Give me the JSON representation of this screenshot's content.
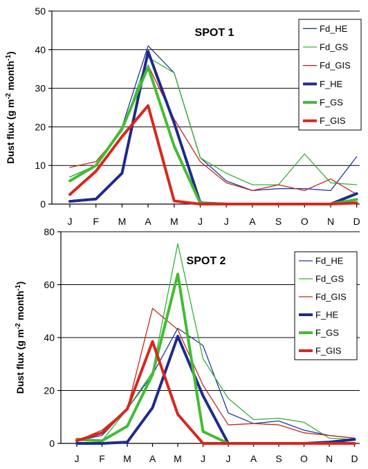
{
  "months": [
    "J",
    "F",
    "M",
    "A",
    "M",
    "J",
    "J",
    "A",
    "S",
    "O",
    "N",
    "D"
  ],
  "ylabel_parts": [
    "Dust flux (g m",
    "-2",
    " month",
    "-1",
    ")"
  ],
  "series_styles": {
    "Fd_HE": {
      "color": "#1f3a9e",
      "thick": false
    },
    "Fd_GS": {
      "color": "#33b233",
      "thick": false
    },
    "Fd_GIS": {
      "color": "#c0261e",
      "thick": false
    },
    "F_HE": {
      "color": "#1f2a8c",
      "thick": true
    },
    "F_GS": {
      "color": "#44bb33",
      "thick": true
    },
    "F_GIS": {
      "color": "#d8261e",
      "thick": true
    }
  },
  "chart_data": [
    {
      "type": "line",
      "title": "SPOT 1",
      "ylabel": "Dust flux (g m-2 month-1)",
      "ylim": [
        0,
        50
      ],
      "yticks": [
        0,
        10,
        20,
        30,
        40,
        50
      ],
      "grid": true,
      "legend": "top-right",
      "categories": [
        "J",
        "F",
        "M",
        "A",
        "M",
        "J",
        "J",
        "A",
        "S",
        "O",
        "N",
        "D"
      ],
      "series": [
        {
          "name": "Fd_HE",
          "values": [
            7,
            10,
            20,
            41,
            34,
            12,
            6,
            3.5,
            4,
            4,
            3.5,
            12.3
          ]
        },
        {
          "name": "Fd_GS",
          "values": [
            7,
            10,
            19,
            38,
            34,
            12,
            8,
            5,
            5,
            13,
            5.5,
            5
          ]
        },
        {
          "name": "Fd_GIS",
          "values": [
            9.5,
            11,
            19,
            36,
            22,
            11,
            5.5,
            3.5,
            5,
            3.5,
            6.5,
            2.5
          ]
        },
        {
          "name": "F_HE",
          "values": [
            0.7,
            1.3,
            8,
            39.5,
            21,
            0.3,
            0,
            0,
            0,
            0,
            0,
            2.7
          ]
        },
        {
          "name": "F_GS",
          "values": [
            6,
            10,
            19.5,
            35.5,
            15,
            0.2,
            0,
            0,
            0,
            0,
            0,
            1.2
          ]
        },
        {
          "name": "F_GIS",
          "values": [
            2.5,
            8.5,
            17.5,
            25.5,
            0.8,
            0,
            0,
            0,
            0,
            0,
            0,
            0.3
          ]
        }
      ]
    },
    {
      "type": "line",
      "title": "SPOT 2",
      "ylabel": "Dust flux (g m-2 month-1)",
      "ylim": [
        0,
        80
      ],
      "yticks": [
        0,
        20,
        40,
        60,
        80
      ],
      "grid": true,
      "legend": "top-right",
      "categories": [
        "J",
        "F",
        "M",
        "A",
        "M",
        "J",
        "J",
        "A",
        "S",
        "O",
        "N",
        "D"
      ],
      "series": [
        {
          "name": "Fd_HE",
          "values": [
            1,
            3,
            13,
            26,
            43.5,
            37,
            11.5,
            7.5,
            8.5,
            5,
            3,
            2
          ]
        },
        {
          "name": "Fd_GS",
          "values": [
            2,
            1,
            13,
            27,
            75.5,
            32,
            17,
            9,
            9.5,
            8,
            2,
            1.5
          ]
        },
        {
          "name": "Fd_GIS",
          "values": [
            1,
            5,
            13,
            51,
            43,
            22,
            7,
            7.5,
            7,
            4,
            3,
            2
          ]
        },
        {
          "name": "F_HE",
          "values": [
            0,
            0,
            0.5,
            13.5,
            40.5,
            18,
            0,
            0,
            0,
            0,
            0.5,
            1.5
          ]
        },
        {
          "name": "F_GS",
          "values": [
            1.5,
            1,
            6.5,
            26,
            64,
            4.5,
            0,
            0,
            0,
            0,
            0,
            0
          ]
        },
        {
          "name": "F_GIS",
          "values": [
            1,
            4,
            13,
            38.5,
            11,
            0,
            0,
            0,
            0,
            0,
            0,
            0
          ]
        }
      ]
    }
  ]
}
